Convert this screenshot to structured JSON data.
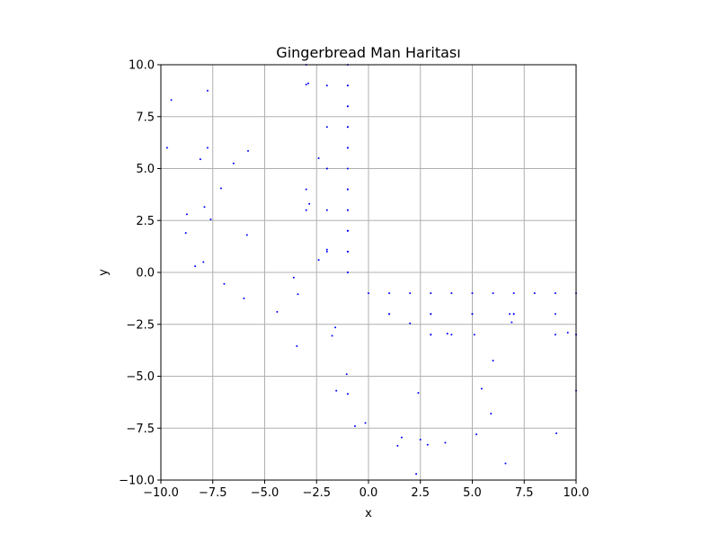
{
  "chart_data": {
    "type": "scatter",
    "title": "Gingerbread Man Haritası",
    "xlabel": "x",
    "ylabel": "y",
    "xlim": [
      -10,
      10
    ],
    "ylim": [
      -10,
      10
    ],
    "x_ticks": [
      -10,
      -7.5,
      -5,
      -2.5,
      0,
      2.5,
      5,
      7.5,
      10
    ],
    "y_ticks": [
      -10,
      -7.5,
      -5,
      -2.5,
      0,
      2.5,
      5,
      7.5,
      10
    ],
    "x_tick_labels": [
      "−10.0",
      "−7.5",
      "−5.0",
      "−2.5",
      "0.0",
      "2.5",
      "5.0",
      "7.5",
      "10.0"
    ],
    "y_tick_labels": [
      "−10.0",
      "−7.5",
      "−5.0",
      "−2.5",
      "0.0",
      "2.5",
      "5.0",
      "7.5",
      "10.0"
    ],
    "grid": true,
    "marker_color": "#0000ff",
    "series": [
      {
        "x": [
          -3,
          -1,
          -1,
          -2,
          -1,
          -3,
          -2.9,
          -1,
          -1,
          -1,
          -2,
          -1,
          -1,
          -2,
          -1,
          -1,
          -2.4,
          -2,
          -1,
          -1,
          -3,
          -1,
          -1,
          -3,
          -2.85,
          -2,
          -1,
          -1,
          -1,
          -2,
          -2,
          -1,
          -1,
          -1,
          -2.4,
          -1,
          -1,
          0,
          1,
          2,
          3,
          4,
          5,
          6,
          7,
          8,
          9,
          10,
          3,
          5,
          7,
          9,
          1,
          3,
          4,
          6.9,
          5,
          7,
          3,
          9,
          10,
          -9.5,
          -9.7,
          -7.75,
          -7.75,
          -8.1,
          -6.5,
          -5.8,
          -7.1,
          -7.9,
          -8.75,
          -8.8,
          -7.6,
          -5.85,
          -8.35,
          -7.95,
          -6.95,
          -3.6,
          -3.4,
          -6,
          -4.4,
          -1.6,
          -1.75,
          -3.45,
          2.0,
          3.8,
          5.1,
          6.8,
          9.6,
          10,
          6.0,
          1.0,
          -1.05,
          -1.55,
          -1.0,
          2.4,
          5.45,
          5.9,
          10.0,
          -0.65,
          -0.15,
          9.05,
          5.2,
          1.6,
          2.5,
          3.7,
          1.4,
          2.85,
          6.6,
          2.3,
          3.0
        ],
        "y": [
          10,
          10,
          9,
          9,
          9,
          9.05,
          9.1,
          8,
          8,
          7,
          7,
          7,
          6,
          5,
          5,
          4,
          5.5,
          5,
          4,
          3,
          4,
          3,
          2,
          3,
          3.3,
          3,
          2,
          1,
          1,
          1,
          1.1,
          0,
          0,
          1,
          0.6,
          2,
          6,
          -1,
          -1,
          -1,
          -1,
          -1,
          -1,
          -1,
          -1,
          -1,
          -1,
          -1,
          -2,
          -2,
          -2,
          -2,
          -2,
          -3,
          -3,
          -2.4,
          -2,
          -2,
          -2,
          -3,
          -3,
          8.3,
          6.0,
          8.75,
          6.0,
          5.45,
          5.25,
          5.85,
          4.05,
          3.15,
          2.8,
          1.9,
          2.55,
          1.8,
          0.3,
          0.5,
          -0.55,
          -0.25,
          -1.05,
          -1.25,
          -1.9,
          -2.65,
          -3.05,
          -3.55,
          -2.45,
          -2.95,
          -3.0,
          -2.0,
          -2.9,
          -3.0,
          -4.25,
          -2.0,
          -4.9,
          -5.7,
          -5.85,
          -5.8,
          -5.6,
          -6.8,
          -5.7,
          -7.4,
          -7.25,
          -7.75,
          -7.8,
          -7.95,
          -8.05,
          -8.2,
          -8.35,
          -8.3,
          -9.2,
          -9.7,
          -3.0
        ]
      }
    ]
  }
}
